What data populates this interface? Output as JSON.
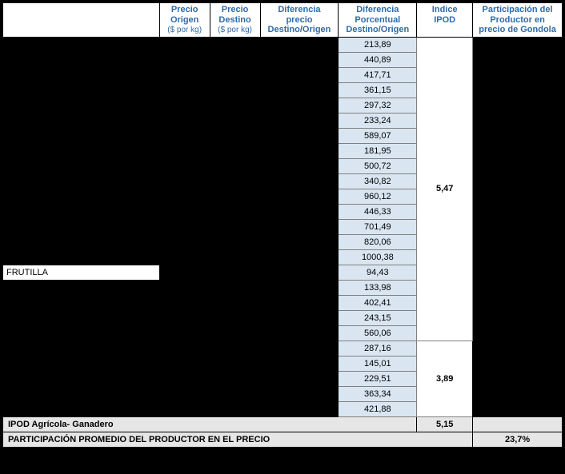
{
  "headers": {
    "c1": "",
    "c2": "Precio Origen",
    "c2_sub": "($ por kg)",
    "c3": "Precio Destino",
    "c3_sub": "($ por kg)",
    "c4": "Diferencia precio Destino/Origen",
    "c5": "Diferencia Porcentual Destino/Origen",
    "c6": "Indice IPOD",
    "c7": "Participación del Productor en precio de Gondola"
  },
  "group1": {
    "diffs": [
      "213,89",
      "440,89",
      "417,71",
      "361,15",
      "297,32",
      "233,24",
      "589,07",
      "181,95",
      "500,72",
      "340,82",
      "960,12",
      "446,33",
      "701,49",
      "820,06",
      "1000,38",
      "94,43",
      "133,98",
      "402,41",
      "243,15",
      "560,06"
    ],
    "indice": "5,47",
    "row_label": "FRUTILLA",
    "label_index": 15
  },
  "group2": {
    "diffs": [
      "287,16",
      "145,01",
      "229,51",
      "363,34",
      "421,88"
    ],
    "indice": "3,89"
  },
  "summary1": {
    "label": "IPOD Agrícola- Ganadero",
    "indice": "5,15"
  },
  "summary2": {
    "label": "PARTICIPACIÓN PROMEDIO DEL PRODUCTOR EN EL PRECIO",
    "value": "23,7%"
  },
  "colors": {
    "header_text": "#2f6ba8",
    "diff_bg": "#d9e6f2",
    "summary_bg": "#e6e6e6"
  }
}
